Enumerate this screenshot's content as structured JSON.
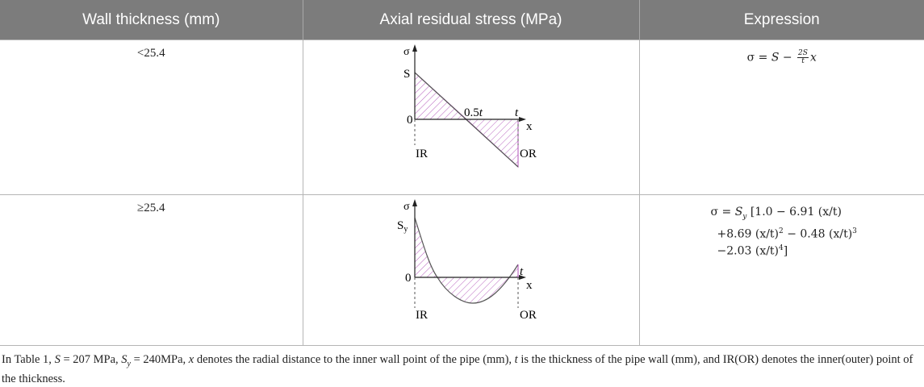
{
  "table": {
    "headers": [
      "Wall thickness (mm)",
      "Axial residual stress (MPa)",
      "Expression"
    ],
    "rows": [
      {
        "wall": "<25.4",
        "figure": {
          "sigma": "σ",
          "peak": "S",
          "zero": "0",
          "mid": "0.5",
          "t": "t",
          "x": "x",
          "inner": "IR",
          "outer": "OR"
        },
        "expression": {
          "lhs": "σ = ",
          "s": "S",
          "minus": " − ",
          "frac_num": "2S",
          "frac_den": "t",
          "x": "x"
        }
      },
      {
        "wall": "≥25.4",
        "figure": {
          "sigma": "σ",
          "peak": "S",
          "peak_sub": "y",
          "zero": "0",
          "t": "t",
          "x": "x",
          "inner": "IR",
          "outer": "OR"
        },
        "expression": {
          "line1_pre": "σ = ",
          "s": "S",
          "sub": "y",
          "line1_post": " [1.0 − 6.91 (x/t)",
          "line2": "+8.69 (x/t)",
          "line2_exp": "2",
          "line2_mid": " − 0.48 (x/t)",
          "line2_exp2": "3",
          "line3": "−2.03 (x/t)",
          "line3_exp": "4",
          "line3_end": "]"
        }
      }
    ]
  },
  "footnote": {
    "p1": "In Table 1, ",
    "s": "S",
    "p2": " = 207 MPa, ",
    "sy": "S",
    "sy_sub": "y",
    "p3": " = 240MPa, ",
    "x": "x",
    "p4": " denotes the radial distance to the inner wall point of the pipe (mm), ",
    "t": "t",
    "p5": " is the thickness of the pipe wall (mm), and IR(OR) denotes the inner(outer) point of the thickness."
  },
  "colors": {
    "header_bg": "#7c7c7c",
    "hatch": "#b050b8",
    "border": "#b5b5b5"
  }
}
